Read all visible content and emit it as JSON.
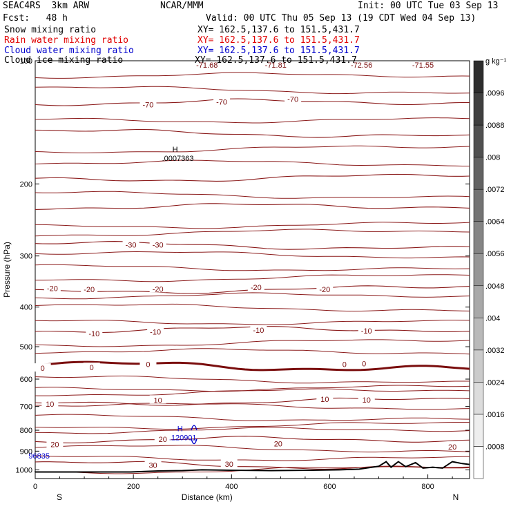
{
  "header": {
    "model": "SEAC4RS  3km ARW",
    "org": "NCAR/MMM",
    "init": "Init: 00 UTC Tue 03 Sep 13",
    "fcst": "Fcst:   48 h",
    "valid": "Valid: 00 UTC Thu 05 Sep 13 (19 CDT Wed 04 Sep 13)",
    "fields": [
      {
        "name": "Snow mixing ratio",
        "xy": "XY= 162.5,137.6 to 151.5,431.7",
        "color": "#000000"
      },
      {
        "name": "Rain water mixing ratio",
        "xy": "XY= 162.5,137.6 to 151.5,431.7",
        "color": "#e00000"
      },
      {
        "name": "Cloud water mixing ratio",
        "xy": "XY= 162.5,137.6 to 151.5,431.7",
        "color": "#0000cc"
      },
      {
        "name": "Cloud ice mixing ratio",
        "xy": "XY= 162.5,137.6 to 151.5,431.7",
        "color": "#000000"
      }
    ]
  },
  "chart_data": {
    "type": "contour",
    "xlabel": "Distance (km)",
    "ylabel": "Pressure (hPa)",
    "xlim": [
      0,
      885
    ],
    "ylim": [
      1050,
      100
    ],
    "y_scale": "log",
    "x_ticks": [
      0,
      200,
      400,
      600,
      800
    ],
    "y_ticks": [
      100,
      200,
      300,
      400,
      500,
      600,
      700,
      800,
      900,
      1000
    ],
    "x_end_labels": {
      "left": "S",
      "right": "N"
    },
    "colorbar": {
      "unit": "g kg⁻¹",
      "ticks": [
        ".0008",
        ".0016",
        ".0024",
        ".0032",
        ".004",
        ".0048",
        ".0056",
        ".0064",
        ".0072",
        ".008",
        ".0088",
        ".0096"
      ]
    },
    "temperature_contours_C": [
      {
        "level": -70,
        "labels": [
          {
            "x": 230,
            "p": 128,
            "text": "-70"
          },
          {
            "x": 380,
            "p": 126,
            "text": "-70"
          },
          {
            "x": 525,
            "p": 124,
            "text": "-70"
          }
        ]
      },
      {
        "level": -30,
        "labels": [
          {
            "x": 195,
            "p": 282,
            "text": "-30"
          },
          {
            "x": 250,
            "p": 282,
            "text": "-30"
          }
        ]
      },
      {
        "level": -20,
        "labels": [
          {
            "x": 35,
            "p": 360,
            "text": "-20"
          },
          {
            "x": 110,
            "p": 362,
            "text": "-20"
          },
          {
            "x": 250,
            "p": 361,
            "text": "-20"
          },
          {
            "x": 450,
            "p": 358,
            "text": "-20"
          },
          {
            "x": 590,
            "p": 362,
            "text": "-20"
          }
        ]
      },
      {
        "level": -10,
        "labels": [
          {
            "x": 120,
            "p": 464,
            "text": "-10"
          },
          {
            "x": 245,
            "p": 460,
            "text": "-10"
          },
          {
            "x": 455,
            "p": 455,
            "text": "-10"
          },
          {
            "x": 675,
            "p": 457,
            "text": "-10"
          }
        ]
      },
      {
        "level": 0,
        "labels": [
          {
            "x": 15,
            "p": 564,
            "text": "0"
          },
          {
            "x": 115,
            "p": 562,
            "text": "0"
          },
          {
            "x": 230,
            "p": 552,
            "text": "0"
          },
          {
            "x": 630,
            "p": 552,
            "text": "0"
          },
          {
            "x": 670,
            "p": 550,
            "text": "0"
          }
        ]
      },
      {
        "level": 10,
        "labels": [
          {
            "x": 30,
            "p": 690,
            "text": "10"
          },
          {
            "x": 250,
            "p": 675,
            "text": "10"
          },
          {
            "x": 590,
            "p": 672,
            "text": "10"
          },
          {
            "x": 675,
            "p": 674,
            "text": "10"
          }
        ]
      },
      {
        "level": 20,
        "labels": [
          {
            "x": 40,
            "p": 866,
            "text": "20"
          },
          {
            "x": 260,
            "p": 842,
            "text": "20"
          },
          {
            "x": 495,
            "p": 863,
            "text": "20"
          },
          {
            "x": 850,
            "p": 878,
            "text": "20"
          }
        ]
      },
      {
        "level": 30,
        "labels": [
          {
            "x": 240,
            "p": 973,
            "text": "30"
          },
          {
            "x": 395,
            "p": 967,
            "text": "30"
          }
        ]
      }
    ],
    "top_labels": [
      "-71.68",
      "-71.81",
      "-72.56",
      "-71.55"
    ],
    "annotations": [
      {
        "text": "H",
        "sub": ".0007363",
        "x": 285,
        "p": 167,
        "color": "#000000"
      },
      {
        "text": "H",
        "sub": ".120901",
        "x": 295,
        "p": 805,
        "color": "#0000cc"
      },
      {
        "text": "96835",
        "x": 8,
        "p": 938,
        "color": "#0000cc"
      }
    ]
  }
}
